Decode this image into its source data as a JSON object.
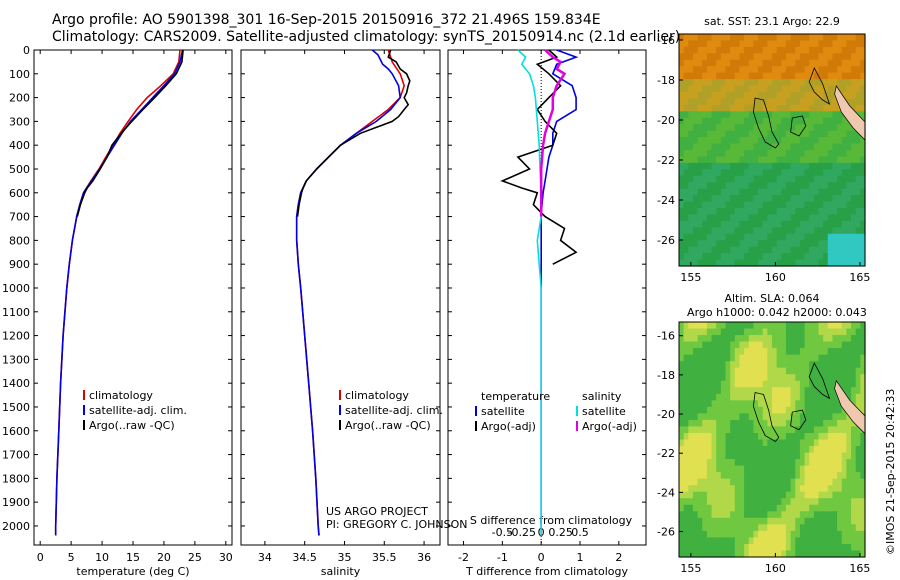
{
  "title": {
    "line1": "Argo profile: AO 5901398_301 16-Sep-2015 20150916_372 21.496S 159.834E",
    "line2": "Climatology: CARS2009. Satellite-adjusted climatology: synTS_20150914.nc (2.1d earlier)"
  },
  "credit": "©IMOS 21-Sep-2015 20:42:33",
  "project": {
    "line1": "US ARGO PROJECT",
    "line2": "PI: GREGORY C. JOHNSON"
  },
  "colors": {
    "climatology": "#e00000",
    "satellite": "#0000e0",
    "argo": "#000000",
    "salinity_satellite": "#00e0e0",
    "salinity_argo": "#e000e0"
  },
  "chart_data": [
    {
      "type": "line",
      "panel": "temperature",
      "xlabel": "temperature (deg C)",
      "ylabel": "",
      "xlim": [
        -1,
        31
      ],
      "ylim": [
        2080,
        0
      ],
      "xticks": [
        0,
        5,
        10,
        15,
        20,
        25,
        30
      ],
      "yticks": [
        0,
        100,
        200,
        300,
        400,
        500,
        600,
        700,
        800,
        900,
        1000,
        1100,
        1200,
        1300,
        1400,
        1500,
        1600,
        1700,
        1800,
        1900,
        2000
      ],
      "legend": [
        "climatology",
        "satellite-adj. clim.",
        "Argo(..raw -QC)"
      ],
      "series": [
        {
          "name": "climatology",
          "color": "#e00000",
          "depth": [
            0,
            50,
            100,
            150,
            200,
            250,
            300,
            350,
            400,
            450,
            500,
            550,
            600,
            650,
            700,
            800,
            900,
            1000,
            1200,
            1400,
            1600,
            1800,
            2000,
            2040
          ],
          "values": [
            22.6,
            22.4,
            21.5,
            19.5,
            17.3,
            15.6,
            14.2,
            12.9,
            11.8,
            10.6,
            9.5,
            8.2,
            7.0,
            6.4,
            5.9,
            5.2,
            4.7,
            4.3,
            3.7,
            3.3,
            3.0,
            2.7,
            2.5,
            2.5
          ]
        },
        {
          "name": "satellite-adj. clim.",
          "color": "#0000e0",
          "depth": [
            0,
            50,
            100,
            150,
            200,
            250,
            300,
            350,
            400,
            450,
            500,
            550,
            600,
            650,
            700,
            800,
            900,
            1000,
            1200,
            1400,
            1600,
            1800,
            2000,
            2040
          ],
          "values": [
            23.0,
            22.6,
            21.7,
            20.0,
            18.2,
            16.4,
            14.6,
            13.2,
            12.0,
            10.8,
            9.6,
            8.3,
            7.0,
            6.4,
            5.9,
            5.2,
            4.7,
            4.3,
            3.7,
            3.3,
            3.0,
            2.7,
            2.5,
            2.5
          ]
        },
        {
          "name": "Argo(..raw -QC)",
          "color": "#000000",
          "depth": [
            0,
            50,
            100,
            150,
            200,
            250,
            300,
            350,
            400,
            450,
            500,
            550,
            580,
            600,
            650,
            700
          ],
          "values": [
            23.1,
            22.9,
            22.0,
            20.3,
            18.5,
            16.6,
            14.8,
            13.1,
            11.6,
            10.8,
            9.7,
            8.5,
            7.6,
            7.2,
            6.5,
            6.0
          ]
        }
      ]
    },
    {
      "type": "line",
      "panel": "salinity",
      "xlabel": "salinity",
      "ylabel": "",
      "xlim": [
        33.7,
        36.2
      ],
      "ylim": [
        2080,
        0
      ],
      "xticks": [
        34,
        34.5,
        35,
        35.5,
        36
      ],
      "legend": [
        "climatology",
        "satellite-adj. clim.",
        "Argo(..raw -QC)"
      ],
      "series": [
        {
          "name": "climatology",
          "color": "#e00000",
          "depth": [
            0,
            50,
            100,
            150,
            200,
            250,
            300,
            350,
            400,
            450,
            500,
            550,
            600,
            650,
            700,
            800,
            900,
            1000,
            1200,
            1400,
            1600,
            1800,
            2000,
            2040
          ],
          "values": [
            35.55,
            35.6,
            35.7,
            35.75,
            35.7,
            35.55,
            35.35,
            35.15,
            34.95,
            34.8,
            34.65,
            34.52,
            34.45,
            34.42,
            34.4,
            34.4,
            34.42,
            34.45,
            34.5,
            34.55,
            34.6,
            34.64,
            34.67,
            34.68
          ]
        },
        {
          "name": "satellite-adj. clim.",
          "color": "#0000e0",
          "depth": [
            0,
            20,
            40,
            60,
            80,
            100,
            150,
            200,
            250,
            300,
            350,
            400,
            450,
            500,
            550,
            600,
            650,
            700,
            800,
            900,
            1000,
            1200,
            1400,
            1600,
            1800,
            2000,
            2040
          ],
          "values": [
            35.35,
            35.42,
            35.45,
            35.48,
            35.55,
            35.6,
            35.68,
            35.7,
            35.58,
            35.4,
            35.15,
            34.95,
            34.8,
            34.65,
            34.52,
            34.45,
            34.42,
            34.4,
            34.4,
            34.42,
            34.45,
            34.5,
            34.55,
            34.6,
            34.64,
            34.67,
            34.68
          ]
        },
        {
          "name": "Argo(..raw -QC)",
          "color": "#000000",
          "depth": [
            0,
            30,
            50,
            80,
            100,
            130,
            150,
            180,
            200,
            230,
            250,
            280,
            300,
            350,
            400,
            450,
            500,
            550,
            580,
            600,
            650,
            700
          ],
          "values": [
            35.58,
            35.55,
            35.65,
            35.7,
            35.78,
            35.82,
            35.8,
            35.78,
            35.75,
            35.8,
            35.75,
            35.68,
            35.6,
            35.2,
            34.95,
            34.8,
            34.65,
            34.52,
            34.48,
            34.46,
            34.43,
            34.41
          ]
        }
      ]
    },
    {
      "type": "line",
      "panel": "difference",
      "xlabel": "T difference from climatology",
      "xlabel2": "S difference from climatology",
      "ylabel": "",
      "xlim": [
        -2.4,
        2.7
      ],
      "ylim": [
        2080,
        0
      ],
      "xticks": [
        -2,
        -1,
        0,
        1,
        2
      ],
      "xticks2": [
        "-0.5",
        "-0.25",
        "0",
        "0.25",
        "0.5"
      ],
      "legend_title_t": "temperature",
      "legend_title_s": "salinity",
      "legend": [
        "satellite",
        "Argo(-adj)",
        "satellite",
        "Argo(-adj)"
      ],
      "series": [
        {
          "name": "satellite",
          "group": "temperature",
          "color": "#0000e0",
          "depth": [
            0,
            30,
            60,
            100,
            150,
            200,
            250,
            300,
            350,
            400,
            450,
            500,
            550,
            600,
            650,
            700,
            800,
            900,
            1000,
            1200,
            1400,
            1600,
            1800,
            2000,
            2040
          ],
          "values": [
            0.4,
            0.9,
            0.4,
            0.3,
            0.8,
            0.9,
            0.9,
            0.4,
            0.3,
            0.3,
            0.2,
            0.15,
            0.1,
            0.05,
            0.02,
            0.0,
            0.0,
            0.0,
            0.0,
            0.0,
            0.0,
            0.0,
            0.0,
            0.0,
            0.0
          ]
        },
        {
          "name": "Argo(-adj)",
          "group": "temperature",
          "color": "#000000",
          "depth": [
            0,
            30,
            60,
            100,
            150,
            200,
            250,
            300,
            350,
            400,
            450,
            500,
            550,
            580,
            600,
            650,
            700,
            750,
            800,
            850,
            900
          ],
          "values": [
            0.2,
            0.4,
            -0.1,
            0.2,
            0.5,
            0.2,
            -0.1,
            0.1,
            0.4,
            0.3,
            -0.6,
            -0.3,
            -1.0,
            -0.5,
            -0.1,
            -0.2,
            0.1,
            0.6,
            0.5,
            0.9,
            0.3
          ]
        },
        {
          "name": "satellite",
          "group": "salinity",
          "color": "#00e0e0",
          "depth": [
            0,
            30,
            60,
            100,
            150,
            200,
            300,
            400,
            500,
            600,
            700,
            800,
            900,
            1000,
            1200,
            1400,
            1600,
            1800,
            2000,
            2040
          ],
          "values": [
            -0.6,
            -0.4,
            -0.5,
            -0.3,
            -0.2,
            -0.15,
            -0.1,
            -0.05,
            -0.03,
            0.0,
            0.0,
            -0.1,
            -0.05,
            0.0,
            0.0,
            0.0,
            0.0,
            0.0,
            0.0,
            0.0
          ]
        },
        {
          "name": "Argo(-adj)",
          "group": "salinity",
          "color": "#e000e0",
          "depth": [
            0,
            30,
            50,
            80,
            100,
            150,
            200,
            250,
            300,
            350,
            400,
            500,
            600,
            700
          ],
          "values": [
            0.1,
            0.3,
            0.5,
            0.4,
            0.6,
            0.4,
            0.3,
            0.3,
            0.2,
            0.1,
            0.05,
            0.0,
            0.0,
            0.0
          ]
        }
      ]
    },
    {
      "type": "heatmap",
      "panel": "sst-map",
      "title": "sat. SST: 23.1 Argo: 22.9",
      "xlim": [
        154.3,
        165.3
      ],
      "ylim": [
        -27.3,
        -15.7
      ],
      "xticks": [
        155,
        160,
        165
      ],
      "yticks": [
        -16,
        -18,
        -20,
        -22,
        -24,
        -26
      ]
    },
    {
      "type": "heatmap",
      "panel": "sla-map",
      "title": "Altim. SLA: 0.064",
      "subtitle": "Argo h1000: 0.042 h2000: 0.043",
      "xlim": [
        154.3,
        165.3
      ],
      "ylim": [
        -27.3,
        -15.3
      ],
      "xticks": [
        155,
        160,
        165
      ],
      "yticks": [
        -16,
        -18,
        -20,
        -22,
        -24,
        -26
      ]
    }
  ]
}
